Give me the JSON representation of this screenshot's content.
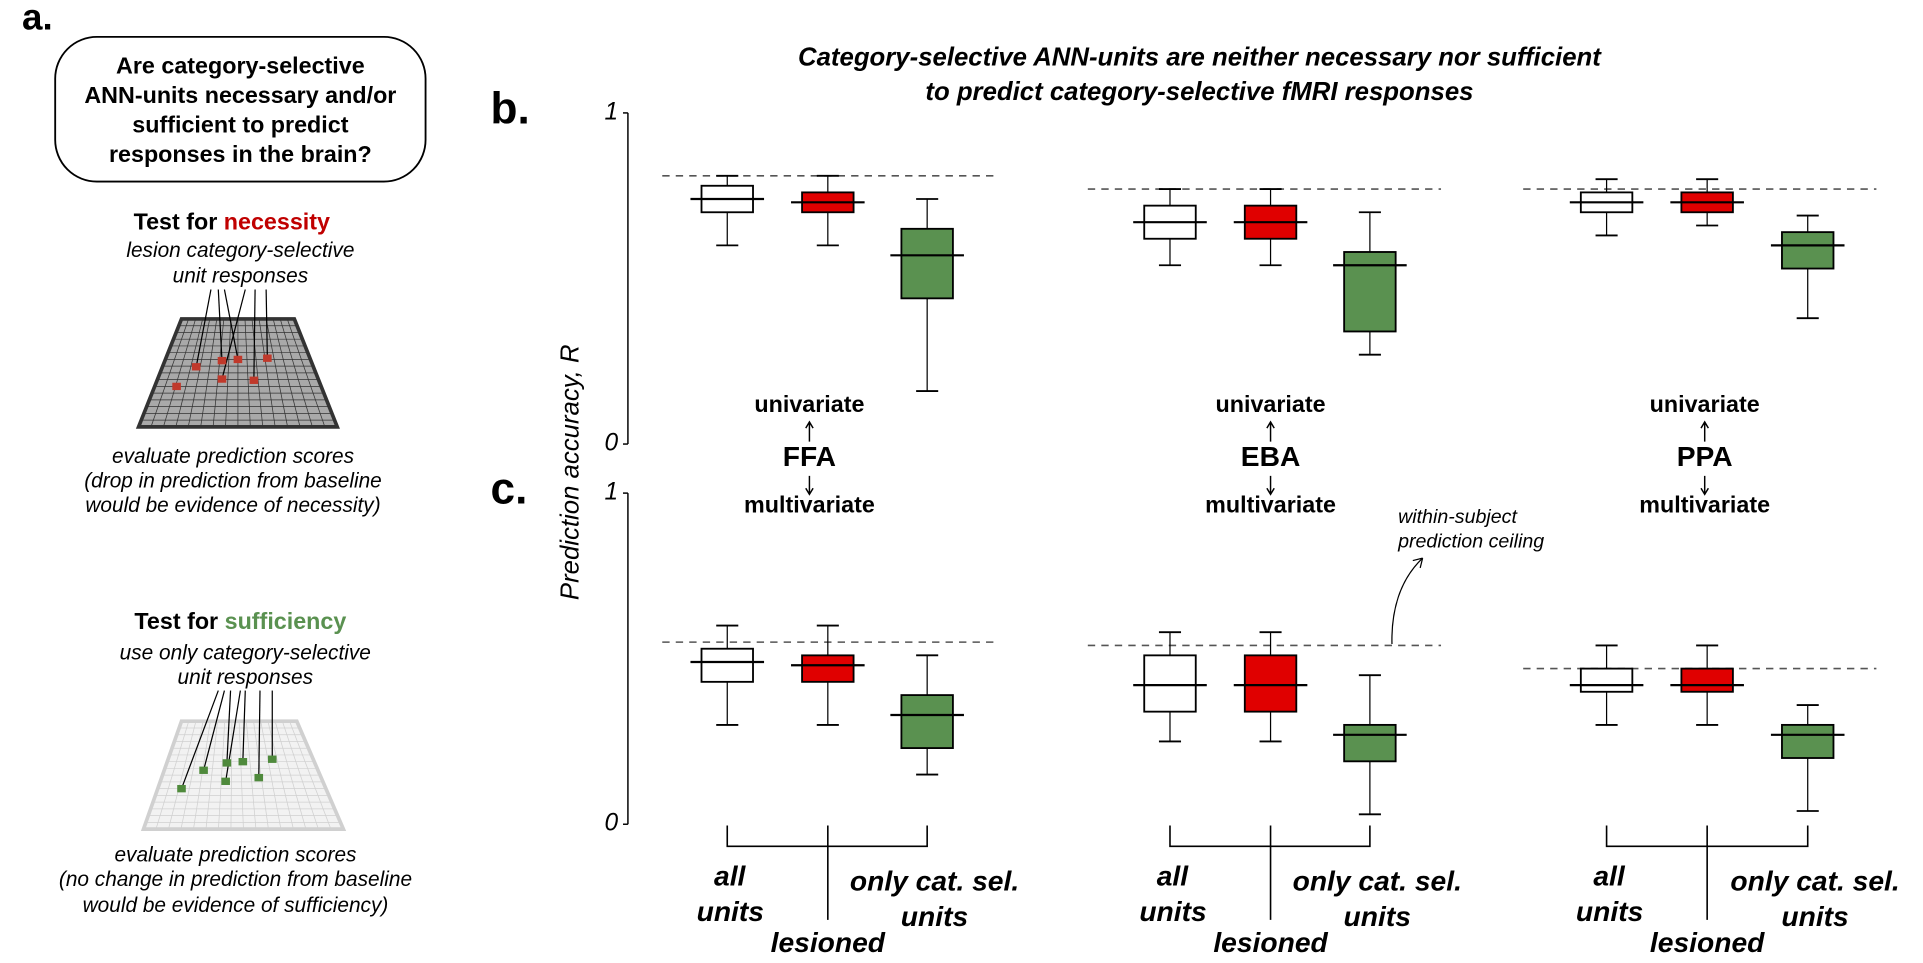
{
  "panel_labels": [
    "a.",
    "b.",
    "c."
  ],
  "panel_a": {
    "question_lines": [
      "Are category-selective",
      "ANN-units necessary and/or",
      "sufficient to predict",
      "responses in the brain?"
    ],
    "necessity": {
      "prefix": "Test for",
      "keyword": "necessity",
      "lines": [
        "lesion category-selective",
        "unit responses"
      ],
      "evaluation_lines": [
        "evaluate prediction scores",
        "(drop in prediction from baseline",
        "would  be evidence of necessity)"
      ]
    },
    "sufficiency": {
      "prefix": "Test for",
      "keyword": "sufficiency",
      "lines": [
        "use only category-selective",
        "unit responses"
      ],
      "evaluation_lines": [
        "evaluate prediction scores",
        "(no change in prediction from baseline",
        "would be evidence of sufficiency)"
      ]
    }
  },
  "title_lines": [
    "Category-selective ANN-units are neither necessary nor sufficient",
    "to predict category-selective fMRI responses"
  ],
  "y_label": "Prediction accuracy, R",
  "regions": [
    {
      "upper": "univariate",
      "name": "FFA",
      "lower": "multivariate"
    },
    {
      "upper": "univariate",
      "name": "EBA",
      "lower": "multivariate"
    },
    {
      "upper": "univariate",
      "name": "PPA",
      "lower": "multivariate"
    }
  ],
  "annotation_lines": [
    "within-subject",
    "prediction ceiling"
  ],
  "chart_data": [
    {
      "type": "box",
      "ylim": [
        0,
        1
      ],
      "yticks": [
        0,
        1
      ],
      "ceiling": 0.81,
      "boxes": [
        {
          "low": 0.6,
          "q1": 0.7,
          "median": 0.74,
          "q3": 0.78,
          "high": 0.81,
          "color": "#ffffff"
        },
        {
          "low": 0.6,
          "q1": 0.7,
          "median": 0.73,
          "q3": 0.76,
          "high": 0.81,
          "color": "#e00000"
        },
        {
          "low": 0.16,
          "q1": 0.44,
          "median": 0.57,
          "q3": 0.65,
          "high": 0.74,
          "color": "#5a9150"
        }
      ]
    },
    {
      "type": "box",
      "ylim": [
        0,
        1
      ],
      "ceiling": 0.77,
      "boxes": [
        {
          "low": 0.54,
          "q1": 0.62,
          "median": 0.67,
          "q3": 0.72,
          "high": 0.77,
          "color": "#ffffff"
        },
        {
          "low": 0.54,
          "q1": 0.62,
          "median": 0.67,
          "q3": 0.72,
          "high": 0.77,
          "color": "#e00000"
        },
        {
          "low": 0.27,
          "q1": 0.34,
          "median": 0.54,
          "q3": 0.58,
          "high": 0.7,
          "color": "#5a9150"
        }
      ]
    },
    {
      "type": "box",
      "ylim": [
        0,
        1
      ],
      "ceiling": 0.77,
      "boxes": [
        {
          "low": 0.63,
          "q1": 0.7,
          "median": 0.73,
          "q3": 0.76,
          "high": 0.8,
          "color": "#ffffff"
        },
        {
          "low": 0.66,
          "q1": 0.7,
          "median": 0.73,
          "q3": 0.76,
          "high": 0.8,
          "color": "#e00000"
        },
        {
          "low": 0.38,
          "q1": 0.53,
          "median": 0.6,
          "q3": 0.64,
          "high": 0.69,
          "color": "#5a9150"
        }
      ]
    },
    {
      "type": "box",
      "ylim": [
        0,
        1
      ],
      "yticks": [
        0,
        1
      ],
      "ceiling": 0.55,
      "categories": [
        "all units",
        "lesioned",
        "only cat. sel. units"
      ],
      "boxes": [
        {
          "low": 0.3,
          "q1": 0.43,
          "median": 0.49,
          "q3": 0.53,
          "high": 0.6,
          "color": "#ffffff"
        },
        {
          "low": 0.3,
          "q1": 0.43,
          "median": 0.48,
          "q3": 0.51,
          "high": 0.6,
          "color": "#e00000"
        },
        {
          "low": 0.15,
          "q1": 0.23,
          "median": 0.33,
          "q3": 0.39,
          "high": 0.51,
          "color": "#5a9150"
        }
      ]
    },
    {
      "type": "box",
      "ylim": [
        0,
        1
      ],
      "ceiling": 0.54,
      "categories": [
        "all units",
        "lesioned",
        "only cat. sel. units"
      ],
      "boxes": [
        {
          "low": 0.25,
          "q1": 0.34,
          "median": 0.42,
          "q3": 0.51,
          "high": 0.58,
          "color": "#ffffff"
        },
        {
          "low": 0.25,
          "q1": 0.34,
          "median": 0.42,
          "q3": 0.51,
          "high": 0.58,
          "color": "#e00000"
        },
        {
          "low": 0.03,
          "q1": 0.19,
          "median": 0.27,
          "q3": 0.3,
          "high": 0.45,
          "color": "#5a9150"
        }
      ]
    },
    {
      "type": "box",
      "ylim": [
        0,
        1
      ],
      "ceiling": 0.47,
      "categories": [
        "all units",
        "lesioned",
        "only cat. sel. units"
      ],
      "boxes": [
        {
          "low": 0.3,
          "q1": 0.4,
          "median": 0.42,
          "q3": 0.47,
          "high": 0.54,
          "color": "#ffffff"
        },
        {
          "low": 0.3,
          "q1": 0.4,
          "median": 0.42,
          "q3": 0.47,
          "high": 0.54,
          "color": "#e00000"
        },
        {
          "low": 0.04,
          "q1": 0.2,
          "median": 0.27,
          "q3": 0.3,
          "high": 0.36,
          "color": "#5a9150"
        }
      ]
    }
  ]
}
